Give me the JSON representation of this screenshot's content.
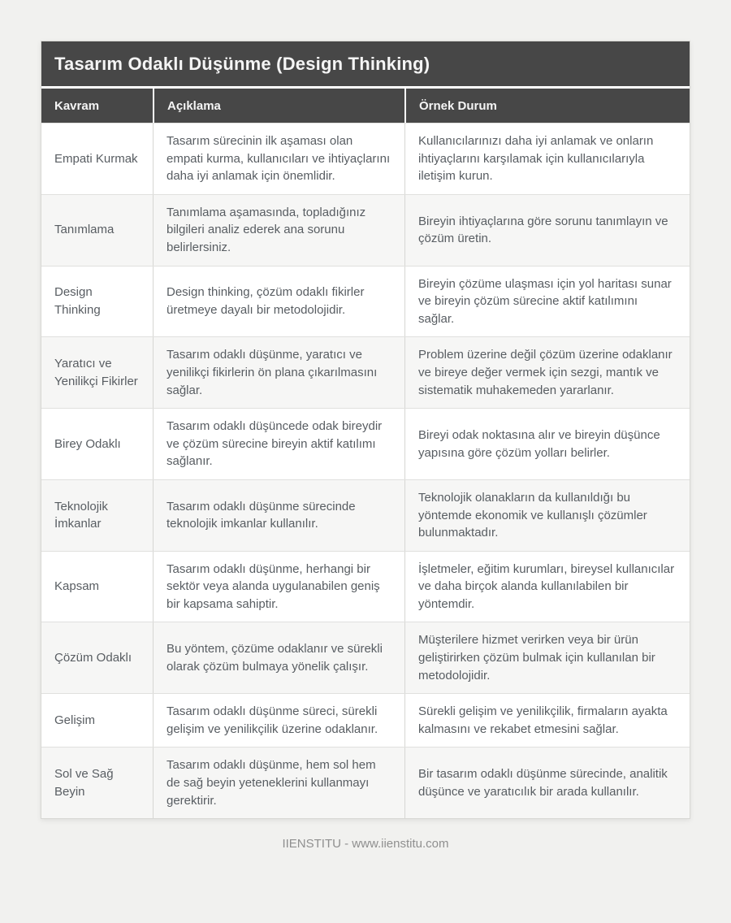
{
  "page": {
    "title": "Tasarım Odaklı Düşünme (Design Thinking)",
    "footer": "IIENSTITU - www.iienstitu.com"
  },
  "colors": {
    "header_bg": "#474747",
    "header_text": "#f5f5f5",
    "page_bg": "#f1f1ef",
    "row_bg": "#ffffff",
    "row_alt_bg": "#f6f6f5",
    "body_text": "#585d62",
    "border": "#d6d6d3",
    "footer_text": "#8f8f8f"
  },
  "table": {
    "columns": [
      "Kavram",
      "Açıklama",
      "Örnek Durum"
    ],
    "rows": [
      {
        "kavram": "Empati Kurmak",
        "aciklama": "Tasarım sürecinin ilk aşaması olan empati kurma, kullanıcıları ve ihtiyaçlarını daha iyi anlamak için önemlidir.",
        "ornek": "Kullanıcılarınızı daha iyi anlamak ve onların ihtiyaçlarını karşılamak için kullanıcılarıyla iletişim kurun."
      },
      {
        "kavram": "Tanımlama",
        "aciklama": "Tanımlama aşamasında, topladığınız bilgileri analiz ederek ana sorunu belirlersiniz.",
        "ornek": "Bireyin ihtiyaçlarına göre sorunu tanımlayın ve çözüm üretin."
      },
      {
        "kavram": "Design Thinking",
        "aciklama": "Design thinking, çözüm odaklı fikirler üretmeye dayalı bir metodolojidir.",
        "ornek": "Bireyin çözüme ulaşması için yol haritası sunar ve bireyin çözüm sürecine aktif katılımını sağlar."
      },
      {
        "kavram": "Yaratıcı ve Yenilikçi Fikirler",
        "aciklama": "Tasarım odaklı düşünme, yaratıcı ve yenilikçi fikirlerin ön plana çıkarılmasını sağlar.",
        "ornek": "Problem üzerine değil çözüm üzerine odaklanır ve bireye değer vermek için sezgi, mantık ve sistematik muhakemeden yararlanır."
      },
      {
        "kavram": "Birey Odaklı",
        "aciklama": "Tasarım odaklı düşüncede odak bireydir ve çözüm sürecine bireyin aktif katılımı sağlanır.",
        "ornek": "Bireyi odak noktasına alır ve bireyin düşünce yapısına göre çözüm yolları belirler."
      },
      {
        "kavram": "Teknolojik İmkanlar",
        "aciklama": "Tasarım odaklı düşünme sürecinde teknolojik imkanlar kullanılır.",
        "ornek": "Teknolojik olanakların da kullanıldığı bu yöntemde ekonomik ve kullanışlı çözümler bulunmaktadır."
      },
      {
        "kavram": "Kapsam",
        "aciklama": "Tasarım odaklı düşünme, herhangi bir sektör veya alanda uygulanabilen geniş bir kapsama sahiptir.",
        "ornek": "İşletmeler, eğitim kurumları, bireysel kullanıcılar ve daha birçok alanda kullanılabilen bir yöntemdir."
      },
      {
        "kavram": "Çözüm Odaklı",
        "aciklama": "Bu yöntem, çözüme odaklanır ve sürekli olarak çözüm bulmaya yönelik çalışır.",
        "ornek": "Müşterilere hizmet verirken veya bir ürün geliştirirken çözüm bulmak için kullanılan bir metodolojidir."
      },
      {
        "kavram": "Gelişim",
        "aciklama": "Tasarım odaklı düşünme süreci, sürekli gelişim ve yenilikçilik üzerine odaklanır.",
        "ornek": "Sürekli gelişim ve yenilikçilik, firmaların ayakta kalmasını ve rekabet etmesini sağlar."
      },
      {
        "kavram": "Sol ve Sağ Beyin",
        "aciklama": "Tasarım odaklı düşünme, hem sol hem de sağ beyin yeteneklerini kullanmayı gerektirir.",
        "ornek": "Bir tasarım odaklı düşünme sürecinde, analitik düşünce ve yaratıcılık bir arada kullanılır."
      }
    ]
  }
}
